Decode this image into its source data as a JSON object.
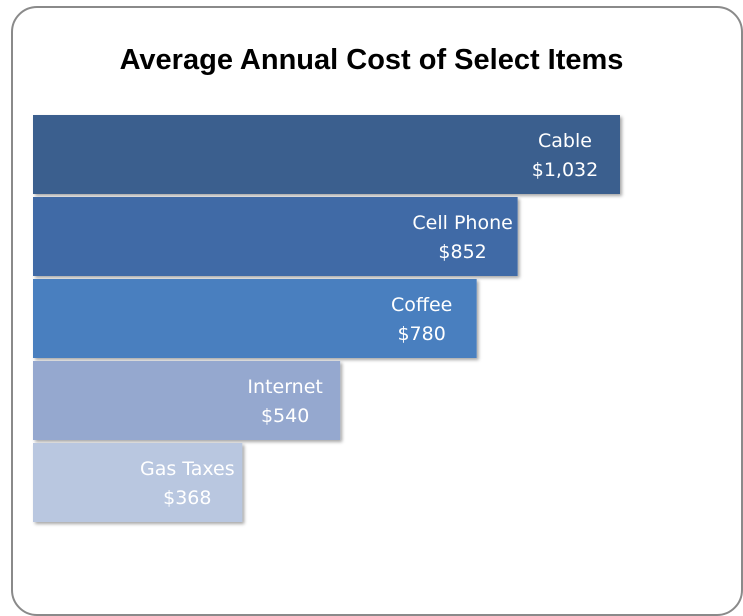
{
  "chart_data": {
    "type": "bar",
    "orientation": "horizontal",
    "title": "Average Annual Cost of Select Items",
    "categories": [
      "Cable",
      "Cell Phone",
      "Coffee",
      "Internet",
      "Gas Taxes"
    ],
    "values": [
      1032,
      852,
      780,
      540,
      368
    ],
    "value_labels": [
      "$1,032",
      "$852",
      "$780",
      "$540",
      "$368"
    ],
    "colors": [
      "#3b5e8e",
      "#3f6aa6",
      "#4a7fbf",
      "#95a8cf",
      "#b9c7e0"
    ],
    "xlim": [
      0,
      1032
    ],
    "grid": false,
    "legend": "none",
    "axes_visible": false
  }
}
